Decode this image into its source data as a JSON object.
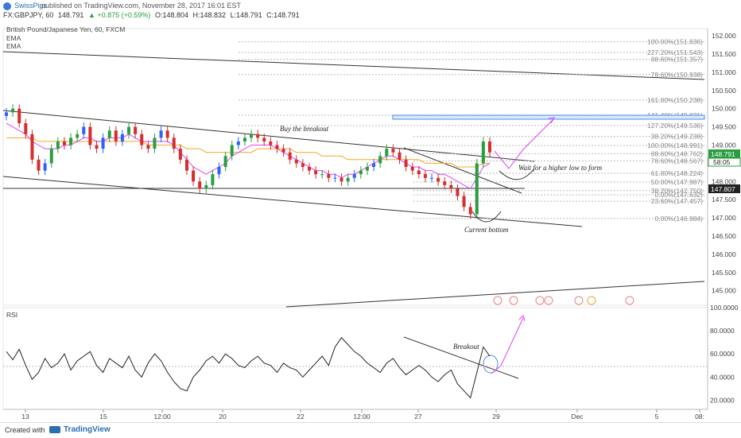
{
  "header": {
    "author": "SwissPips",
    "published_text": "published on TradingView.com, November 28, 2017 16:01 EST",
    "symbol": "FX:GBPJPY, 60",
    "last": "148.791",
    "change": "▲ +0.875 (+0.59%)",
    "open": "O:148.804",
    "high": "H:148.832",
    "low": "L:148.791",
    "close": "C:148.791"
  },
  "legend": {
    "series_name": "British Pound/Japanese Yen, 60, FXCM",
    "ema1": "EMA",
    "ema2": "EMA"
  },
  "price_tags": {
    "last": "148.791",
    "countdown": "58:05",
    "level": "147.807"
  },
  "annotations": {
    "buy": "Buy the breakout",
    "wait": "Wait for a higher low to form",
    "bottom": "Current bottom",
    "breakout": "Breakout"
  },
  "rsi": {
    "label": "RSI"
  },
  "footer": {
    "created": "Created with",
    "brand": "TradingView"
  },
  "colors": {
    "up": "#2a9d3f",
    "down": "#d62d2d",
    "candle_blue": "#2962ff",
    "ema_fast": "#e040fb",
    "ema_slow": "#f5a623",
    "fib_box": "#4a90e2",
    "arrow": "#e040fb",
    "rsi": "#222222"
  },
  "chart_data": {
    "type": "line",
    "price_axis": {
      "ticks": [
        "152.000",
        "151.500",
        "151.000",
        "150.500",
        "150.000",
        "149.500",
        "149.000",
        "148.500",
        "148.000",
        "147.500",
        "147.000",
        "146.500",
        "146.000",
        "145.500",
        "145.000"
      ],
      "ylim": [
        144.6,
        152.2
      ]
    },
    "time_axis": {
      "ticks": [
        "13",
        "15",
        "12:00",
        "20",
        "22",
        "12:00",
        "27",
        "29",
        "Dec",
        "5",
        "08:"
      ]
    },
    "fib_upper": [
      {
        "label": "100.00%(151.836)",
        "value": 151.836
      },
      {
        "label": "227.20%(151.543)",
        "value": 151.543
      },
      {
        "label": "88.60%(151.357)",
        "value": 151.357
      },
      {
        "label": "78.60%(150.938)",
        "value": 150.938
      },
      {
        "label": "161.80%(150.238)",
        "value": 150.238
      },
      {
        "label": "141.40%(149.821)",
        "value": 149.821
      },
      {
        "label": "127.20%(149.536)",
        "value": 149.536
      }
    ],
    "fib_lower": [
      {
        "label": "38.20%(149.238)",
        "value": 149.238
      },
      {
        "label": "100.00%(148.991)",
        "value": 148.991
      },
      {
        "label": "88.60%(148.762)",
        "value": 148.762
      },
      {
        "label": "78.60%(148.567)",
        "value": 148.567
      },
      {
        "label": "61.80%(148.224)",
        "value": 148.224
      },
      {
        "label": "50.00%(147.987)",
        "value": 147.987
      },
      {
        "label": "38.20%(147.750)",
        "value": 147.75
      },
      {
        "label": "0.00%(147.632)",
        "value": 147.632
      },
      {
        "label": "23.60%(147.457)",
        "value": 147.457
      },
      {
        "label": "0.00%(146.984)",
        "value": 146.984
      }
    ],
    "close_series": [
      149.9,
      150.0,
      149.6,
      149.3,
      148.6,
      148.3,
      148.5,
      148.9,
      149.1,
      149.0,
      149.2,
      149.3,
      149.5,
      149.0,
      148.9,
      149.2,
      149.4,
      149.1,
      149.3,
      149.5,
      149.3,
      149.0,
      148.9,
      149.2,
      149.4,
      149.2,
      148.9,
      148.6,
      148.3,
      148.0,
      147.8,
      147.9,
      148.2,
      148.4,
      148.7,
      149.0,
      149.1,
      149.2,
      149.3,
      149.2,
      149.1,
      149.0,
      148.9,
      148.8,
      148.6,
      148.5,
      148.4,
      148.3,
      148.2,
      148.2,
      148.1,
      148.1,
      148.0,
      148.1,
      148.2,
      148.3,
      148.4,
      148.5,
      148.7,
      148.9,
      148.8,
      148.6,
      148.4,
      148.3,
      148.2,
      148.1,
      148.1,
      148.0,
      147.9,
      147.8,
      147.6,
      147.3,
      147.1,
      148.5,
      149.1,
      148.8
    ],
    "ema_fast": [
      149.6,
      149.5,
      149.4,
      149.3,
      149.1,
      149.0,
      148.9,
      148.9,
      148.9,
      149.0,
      149.0,
      149.1,
      149.2,
      149.2,
      149.1,
      149.1,
      149.2,
      149.2,
      149.2,
      149.3,
      149.2,
      149.1,
      149.1,
      149.1,
      149.1,
      149.1,
      149.0,
      148.8,
      148.6,
      148.4,
      148.3,
      148.2,
      148.3,
      148.4,
      148.5,
      148.7,
      148.8,
      148.9,
      149.0,
      149.0,
      149.0,
      149.0,
      148.9,
      148.8,
      148.7,
      148.6,
      148.5,
      148.4,
      148.3,
      148.3,
      148.2,
      148.2,
      148.1,
      148.2,
      148.2,
      148.3,
      148.4,
      148.5,
      148.6,
      148.7,
      148.7,
      148.6,
      148.5,
      148.4,
      148.4,
      148.3,
      148.3,
      148.2,
      148.2,
      148.1,
      148.0,
      147.9,
      147.8,
      148.1,
      148.4,
      148.5
    ],
    "ema_slow": [
      149.2,
      149.2,
      149.2,
      149.2,
      149.2,
      149.1,
      149.1,
      149.1,
      149.1,
      149.1,
      149.1,
      149.1,
      149.1,
      149.1,
      149.1,
      149.1,
      149.1,
      149.1,
      149.1,
      149.1,
      149.1,
      149.1,
      149.0,
      149.0,
      149.0,
      149.0,
      149.0,
      149.0,
      148.9,
      148.9,
      148.9,
      148.8,
      148.8,
      148.8,
      148.8,
      148.8,
      148.8,
      148.8,
      148.8,
      148.9,
      148.9,
      148.9,
      148.9,
      148.9,
      148.9,
      148.8,
      148.8,
      148.8,
      148.8,
      148.7,
      148.7,
      148.7,
      148.7,
      148.6,
      148.6,
      148.6,
      148.6,
      148.6,
      148.6,
      148.6,
      148.6,
      148.6,
      148.6,
      148.6,
      148.6,
      148.5,
      148.5,
      148.5,
      148.5,
      148.5,
      148.4,
      148.4,
      148.4,
      148.4,
      148.5,
      148.5
    ],
    "rsi_axis": {
      "ticks": [
        "100.0000",
        "80.0000",
        "60.0000",
        "40.0000",
        "20.0000"
      ],
      "ylim": [
        12,
        100
      ]
    },
    "rsi_series": [
      62,
      55,
      64,
      50,
      38,
      44,
      56,
      48,
      52,
      60,
      46,
      54,
      58,
      62,
      50,
      44,
      56,
      52,
      48,
      58,
      46,
      40,
      52,
      60,
      54,
      44,
      36,
      30,
      28,
      40,
      46,
      54,
      58,
      52,
      60,
      56,
      50,
      48,
      54,
      58,
      52,
      50,
      44,
      52,
      48,
      46,
      40,
      46,
      52,
      58,
      50,
      66,
      74,
      68,
      62,
      58,
      52,
      48,
      44,
      52,
      56,
      48,
      42,
      46,
      50,
      46,
      40,
      36,
      42,
      46,
      34,
      28,
      22,
      44,
      66,
      58
    ]
  }
}
